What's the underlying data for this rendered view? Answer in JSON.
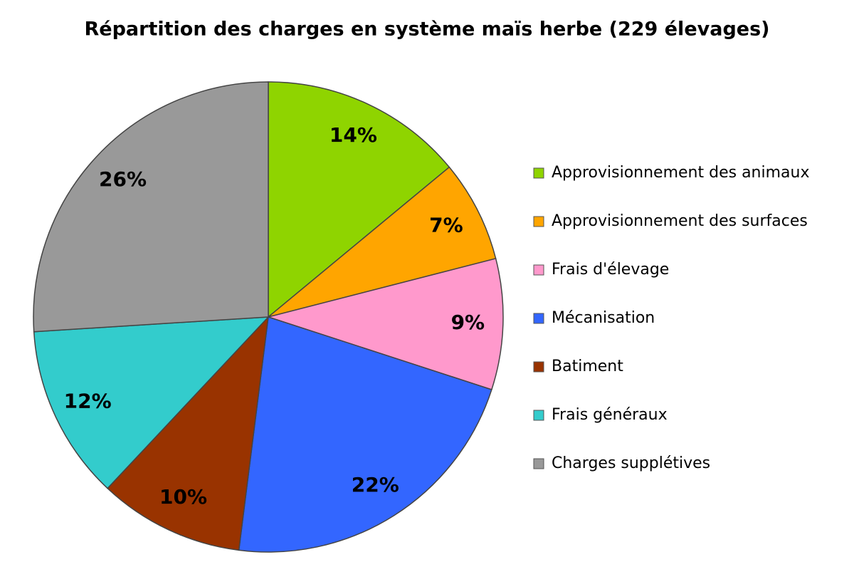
{
  "chart_data": {
    "type": "pie",
    "title": "Répartition des charges en système maïs herbe (229 élevages)",
    "categories": [
      "Approvisionnement des animaux",
      "Approvisionnement des surfaces",
      "Frais d'élevage",
      "Mécanisation",
      "Batiment",
      "Frais généraux",
      "Charges supplétives"
    ],
    "values": [
      14,
      7,
      9,
      22,
      10,
      12,
      26
    ],
    "value_labels": [
      "14%",
      "7%",
      "9%",
      "22%",
      "10%",
      "12%",
      "26%"
    ],
    "colors": [
      "#8fd400",
      "#ffa500",
      "#ff99cc",
      "#3366ff",
      "#993300",
      "#33cccc",
      "#999999"
    ],
    "legend": "right"
  }
}
